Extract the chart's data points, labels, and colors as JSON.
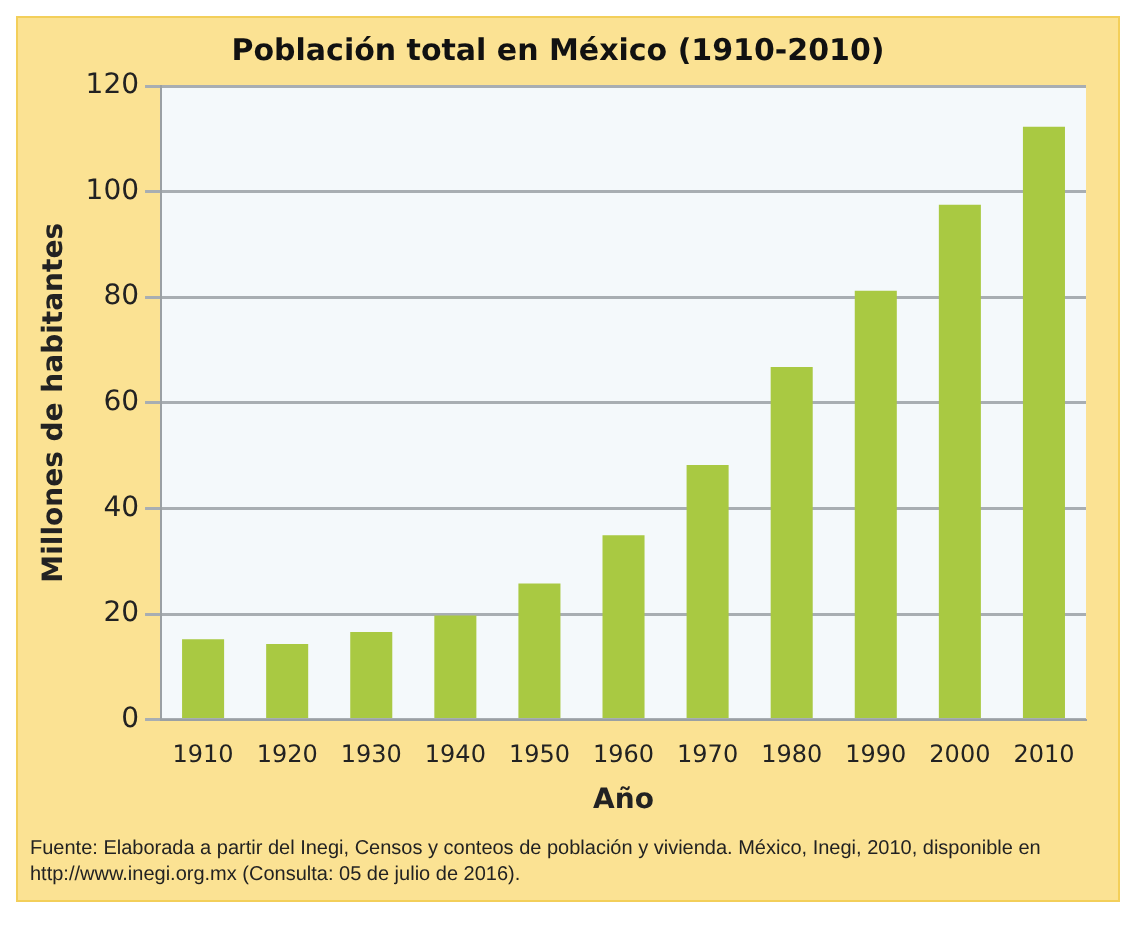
{
  "chart_data": {
    "type": "bar",
    "title": "Población total en México (1910-2010)",
    "xlabel": "Año",
    "ylabel": "Millones de habitantes",
    "categories": [
      "1910",
      "1920",
      "1930",
      "1940",
      "1950",
      "1960",
      "1970",
      "1980",
      "1990",
      "2000",
      "2010"
    ],
    "values": [
      15.2,
      14.3,
      16.6,
      19.7,
      25.8,
      34.9,
      48.2,
      66.8,
      81.2,
      97.5,
      112.3
    ],
    "color": "#a9c942",
    "ylim": [
      0,
      120
    ],
    "yticks": [
      0,
      20,
      40,
      60,
      80,
      100,
      120
    ],
    "grid": "y",
    "annotations": [
      "Fuente: Elaborada a partir del Inegi, Censos y conteos de población y vivienda. México, Inegi, 2010, disponible en http://www.inegi.org.mx (Consulta: 05 de julio de 2016)."
    ]
  }
}
